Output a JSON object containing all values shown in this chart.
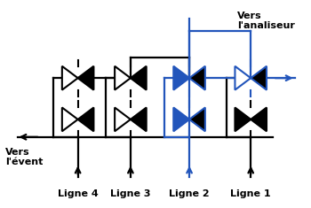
{
  "black": "#000000",
  "blue": "#2255BB",
  "white": "#FFFFFF",
  "bg": "#FFFFFF",
  "figsize": [
    3.5,
    2.35
  ],
  "dpi": 100,
  "labels": [
    "Ligne 4",
    "Ligne 3",
    "Ligne 2",
    "Ligne 1"
  ],
  "vers_event": "Vers\nl'évent",
  "vers_analyseur": "Vers\nl'analiseur",
  "lw": 1.6
}
